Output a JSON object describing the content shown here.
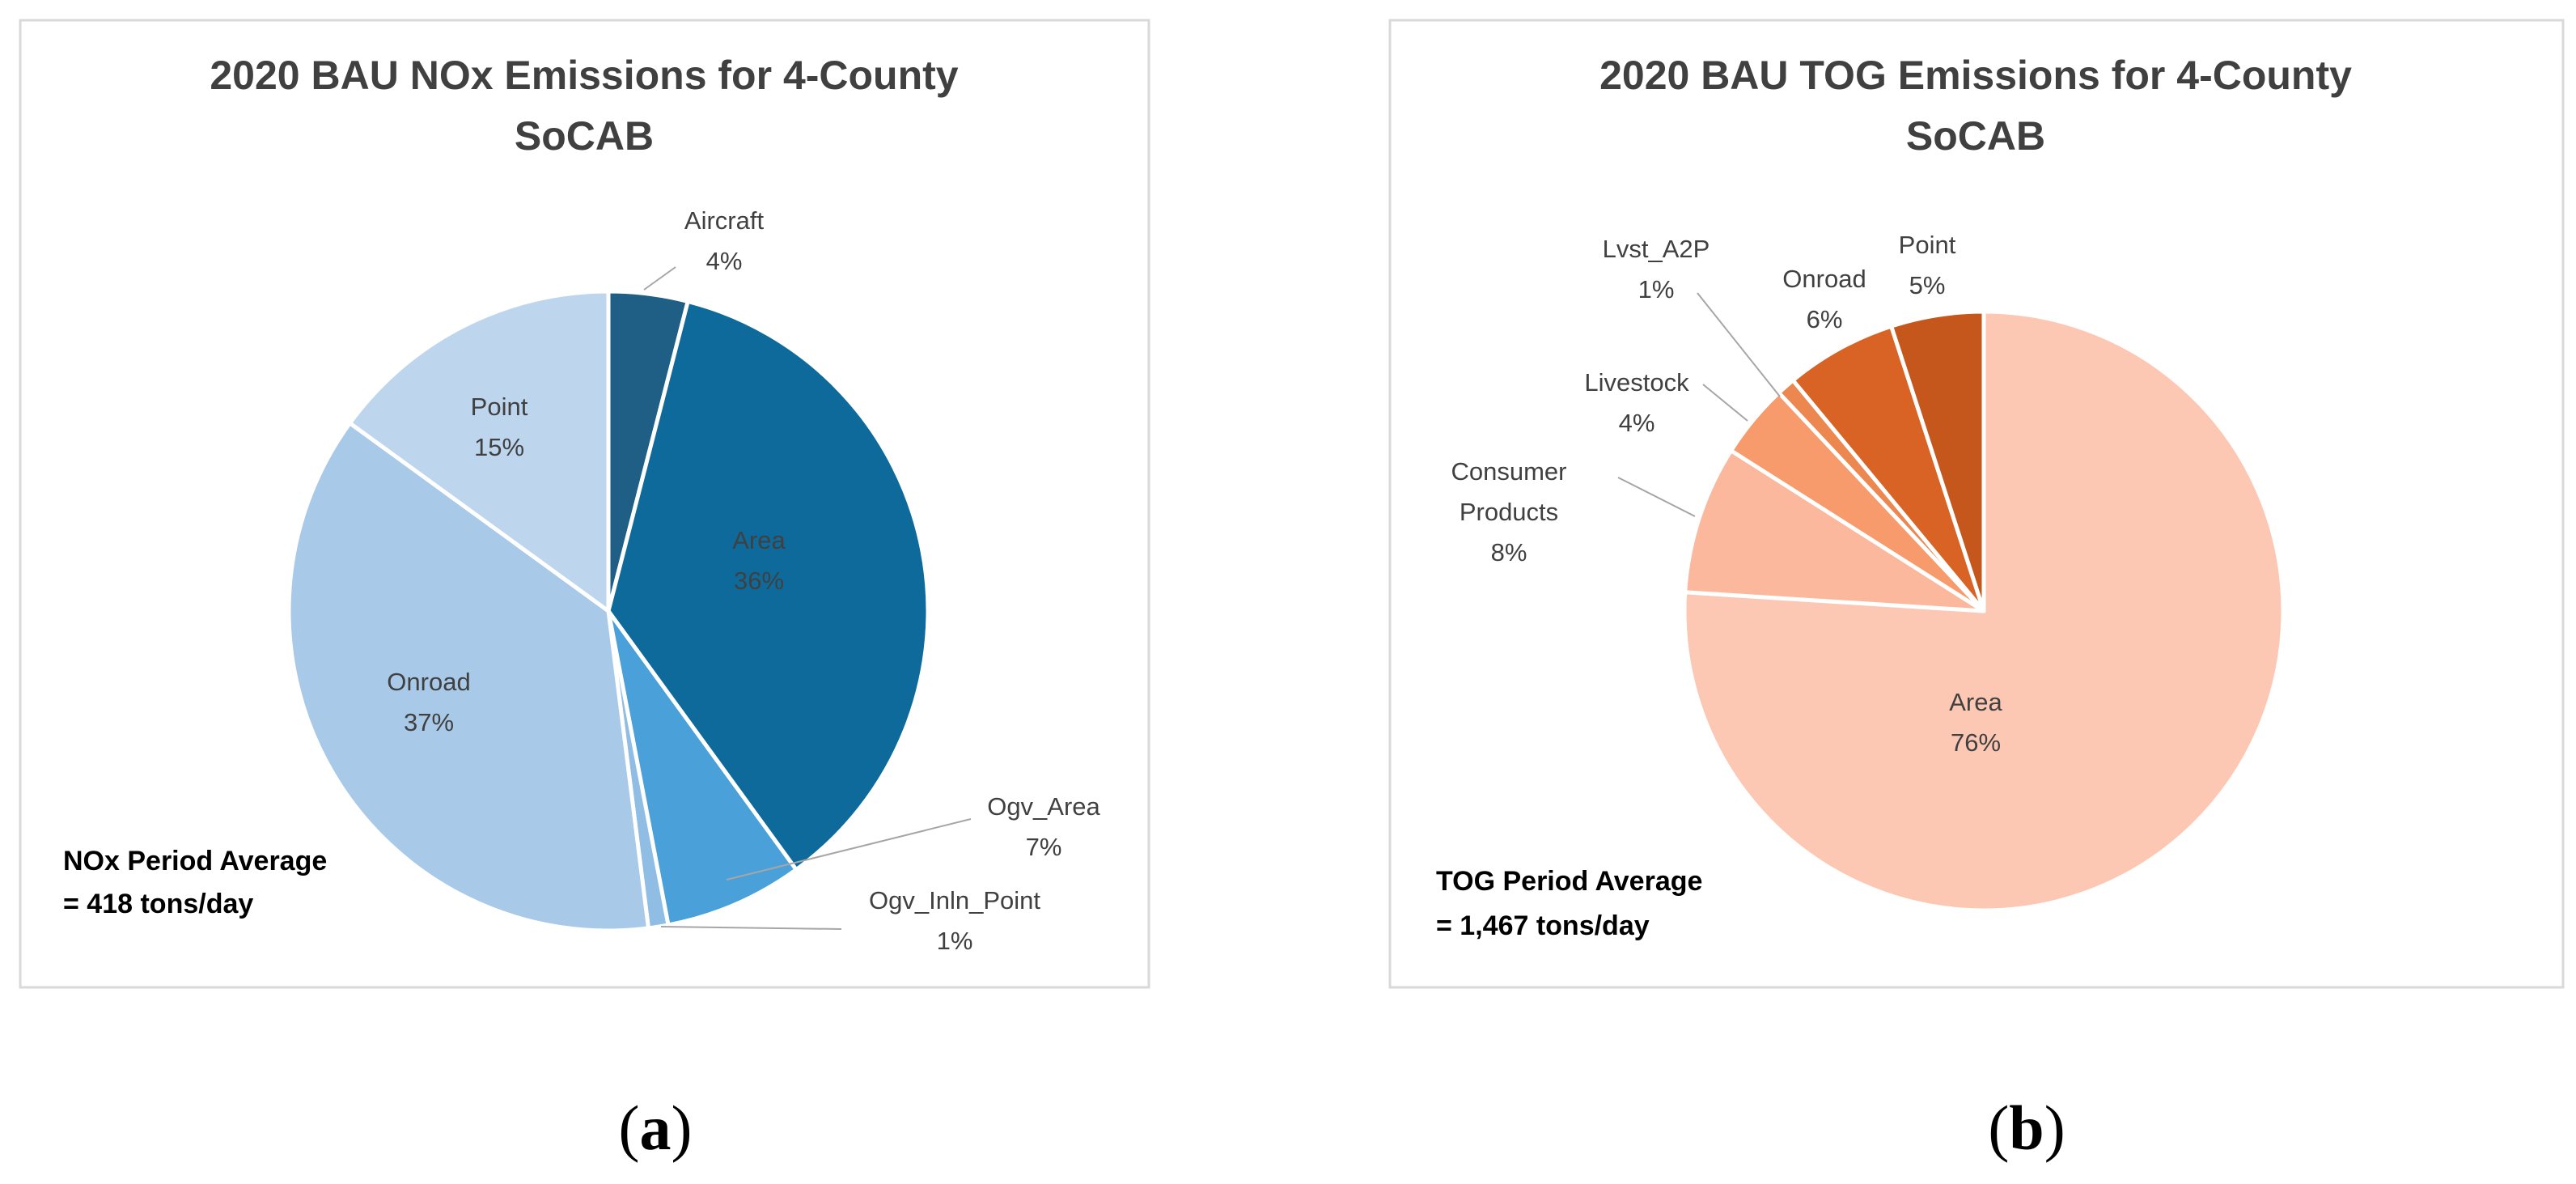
{
  "chart_data": [
    {
      "type": "pie",
      "title": [
        "2020 BAU NOx Emissions for 4-County",
        "SoCAB"
      ],
      "series": [
        {
          "name": "Aircraft",
          "value": 4,
          "pct_label": "4%",
          "color": "#1f5f85"
        },
        {
          "name": "Area",
          "value": 36,
          "pct_label": "36%",
          "color": "#0e6a9b"
        },
        {
          "name": "Ogv_Area",
          "value": 7,
          "pct_label": "7%",
          "color": "#4aa0d9"
        },
        {
          "name": "Ogv_Inln_Point",
          "value": 1,
          "pct_label": "1%",
          "color": "#8fbde3"
        },
        {
          "name": "Onroad",
          "value": 37,
          "pct_label": "37%",
          "color": "#a8c9e8"
        },
        {
          "name": "Point",
          "value": 15,
          "pct_label": "15%",
          "color": "#bdd6ee"
        }
      ],
      "annotation": [
        "NOx Period Average",
        "= 418 tons/day"
      ],
      "caption": "a"
    },
    {
      "type": "pie",
      "title": [
        "2020 BAU TOG Emissions for 4-County",
        "SoCAB"
      ],
      "series": [
        {
          "name": "Area",
          "value": 76,
          "pct_label": "76%",
          "color": "#fdc8b3"
        },
        {
          "name": "Consumer Products",
          "value": 8,
          "pct_label": "8%",
          "color": "#fbb89c"
        },
        {
          "name": "Livestock",
          "value": 4,
          "pct_label": "4%",
          "color": "#f79a6c"
        },
        {
          "name": "Lvst_A2P",
          "value": 1,
          "pct_label": "1%",
          "color": "#ec8750"
        },
        {
          "name": "Onroad",
          "value": 6,
          "pct_label": "6%",
          "color": "#d96324"
        },
        {
          "name": "Point",
          "value": 5,
          "pct_label": "5%",
          "color": "#c5571c"
        }
      ],
      "annotation": [
        "TOG Period Average",
        "= 1,467 tons/day"
      ],
      "caption": "b"
    }
  ]
}
